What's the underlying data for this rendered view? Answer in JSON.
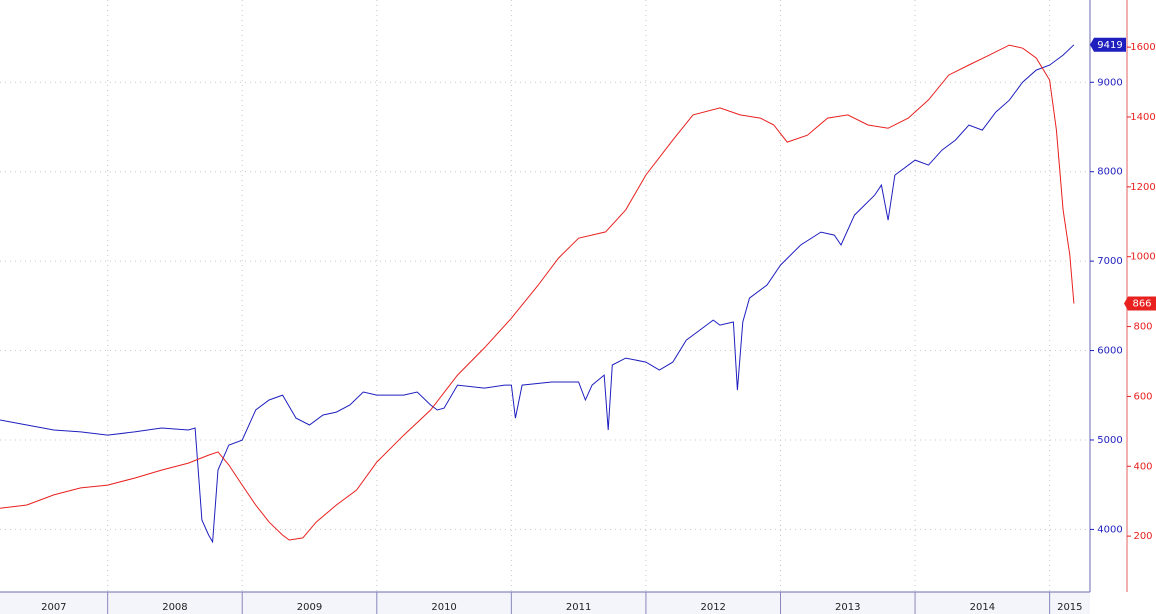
{
  "chart_data": {
    "type": "line",
    "grid": true,
    "xlim": [
      2007.2,
      2015.3
    ],
    "xticks": [
      2007,
      2008,
      2009,
      2010,
      2011,
      2012,
      2013,
      2014,
      2015
    ],
    "ylim": [
      3300,
      9920
    ],
    "yticks": [
      4000,
      5000,
      6000,
      7000,
      8000,
      9000
    ],
    "y2lim": [
      40,
      1735
    ],
    "y2ticks": [
      200,
      400,
      600,
      800,
      1000,
      1200,
      1400,
      1600
    ],
    "series": [
      {
        "color": "#1f1fbf",
        "axis": "y",
        "x": [
          2007.2,
          2007.4,
          2007.6,
          2007.8,
          2008.0,
          2008.2,
          2008.4,
          2008.6,
          2008.65,
          2008.7,
          2008.75,
          2008.78,
          2008.82,
          2008.9,
          2009.0,
          2009.1,
          2009.2,
          2009.3,
          2009.4,
          2009.5,
          2009.6,
          2009.7,
          2009.8,
          2009.9,
          2010.0,
          2010.2,
          2010.3,
          2010.4,
          2010.45,
          2010.5,
          2010.6,
          2010.8,
          2010.95,
          2011.0,
          2011.03,
          2011.08,
          2011.3,
          2011.5,
          2011.55,
          2011.6,
          2011.69,
          2011.72,
          2011.75,
          2011.85,
          2012.0,
          2012.1,
          2012.2,
          2012.3,
          2012.4,
          2012.5,
          2012.55,
          2012.65,
          2012.68,
          2012.72,
          2012.77,
          2012.9,
          2013.0,
          2013.15,
          2013.3,
          2013.4,
          2013.45,
          2013.55,
          2013.7,
          2013.75,
          2013.8,
          2013.85,
          2014.0,
          2014.1,
          2014.2,
          2014.3,
          2014.4,
          2014.5,
          2014.6,
          2014.7,
          2014.8,
          2014.9,
          2015.0,
          2015.1,
          2015.18
        ],
        "values": [
          5223,
          5167,
          5111,
          5090,
          5055,
          5090,
          5134,
          5111,
          5134,
          4105,
          3937,
          3860,
          4664,
          4943,
          4999,
          5335,
          5447,
          5502,
          5245,
          5167,
          5279,
          5312,
          5391,
          5536,
          5502,
          5502,
          5536,
          5391,
          5335,
          5357,
          5614,
          5580,
          5614,
          5614,
          5245,
          5614,
          5648,
          5648,
          5447,
          5614,
          5726,
          5111,
          5838,
          5916,
          5871,
          5782,
          5871,
          6117,
          6229,
          6341,
          6285,
          6319,
          5558,
          6319,
          6587,
          6733,
          6956,
          7180,
          7325,
          7291,
          7180,
          7515,
          7738,
          7850,
          7459,
          7962,
          8130,
          8074,
          8242,
          8353,
          8521,
          8465,
          8666,
          8800,
          9002,
          9136,
          9192,
          9304,
          9419
        ]
      },
      {
        "color": "#e8201e",
        "axis": "y2",
        "x": [
          2007.2,
          2007.4,
          2007.6,
          2007.8,
          2008.0,
          2008.2,
          2008.4,
          2008.6,
          2008.75,
          2008.82,
          2008.9,
          2009.0,
          2009.1,
          2009.2,
          2009.3,
          2009.35,
          2009.45,
          2009.55,
          2009.7,
          2009.85,
          2010.0,
          2010.2,
          2010.4,
          2010.6,
          2010.8,
          2011.0,
          2011.2,
          2011.35,
          2011.5,
          2011.7,
          2011.85,
          2012.0,
          2012.2,
          2012.35,
          2012.55,
          2012.7,
          2012.85,
          2012.95,
          2013.05,
          2013.2,
          2013.35,
          2013.5,
          2013.65,
          2013.8,
          2013.95,
          2014.1,
          2014.25,
          2014.4,
          2014.55,
          2014.7,
          2014.8,
          2014.9,
          2015.0,
          2015.05,
          2015.1,
          2015.15,
          2015.18
        ],
        "values": [
          280,
          289,
          318,
          338,
          346,
          366,
          389,
          409,
          432,
          441,
          404,
          346,
          289,
          240,
          203,
          189,
          195,
          240,
          289,
          332,
          412,
          489,
          561,
          661,
          739,
          824,
          919,
          996,
          1053,
          1071,
          1134,
          1234,
          1334,
          1406,
          1426,
          1406,
          1397,
          1377,
          1328,
          1348,
          1397,
          1406,
          1377,
          1368,
          1397,
          1449,
          1520,
          1549,
          1577,
          1606,
          1597,
          1569,
          1506,
          1363,
          1134,
          1005,
          866
        ]
      }
    ]
  }
}
